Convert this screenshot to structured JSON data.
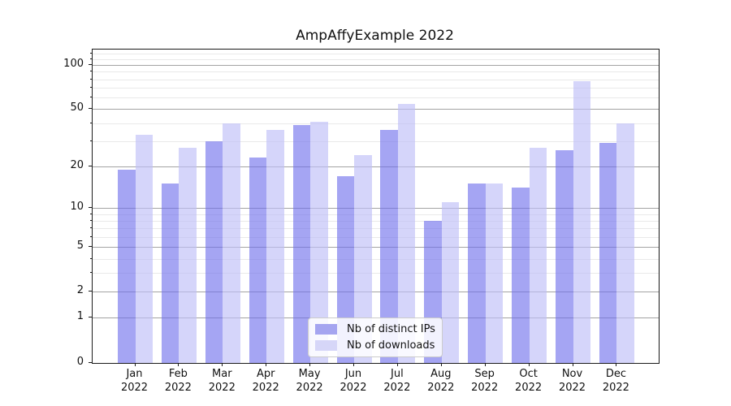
{
  "chart_data": {
    "type": "bar",
    "title": "AmpAffyExample 2022",
    "categories": [
      "Jan",
      "Feb",
      "Mar",
      "Apr",
      "May",
      "Jun",
      "Jul",
      "Aug",
      "Sep",
      "Oct",
      "Nov",
      "Dec"
    ],
    "x_tick_year": "2022",
    "series": [
      {
        "name": "Nb of distinct IPs",
        "color": "#a5a5f0",
        "bar_fill": "rgba(110,110,235,0.62)",
        "values": [
          19,
          15,
          30,
          23,
          39,
          17,
          36,
          8,
          15,
          14,
          26,
          29
        ]
      },
      {
        "name": "Nb of downloads",
        "color": "#d6d6f8",
        "bar_fill": "rgba(190,190,247,0.65)",
        "values": [
          33,
          27,
          40,
          36,
          41,
          24,
          54,
          11,
          15,
          27,
          78,
          40
        ]
      }
    ],
    "yscale": "log1p",
    "ylim": [
      0,
      127
    ],
    "y_major_ticks": [
      0,
      1,
      2,
      5,
      10,
      20,
      50,
      100
    ],
    "y_minor_ticks": [
      3,
      4,
      6,
      7,
      8,
      9,
      30,
      40,
      60,
      70,
      80,
      90,
      110,
      120
    ],
    "grid": true,
    "legend_position": "lower center",
    "colors": {
      "major_grid": "#a3a3a3",
      "minor_grid": "#e9e9e9",
      "spine": "#1a1a1a",
      "text": "#111111",
      "background": "#ffffff"
    }
  }
}
